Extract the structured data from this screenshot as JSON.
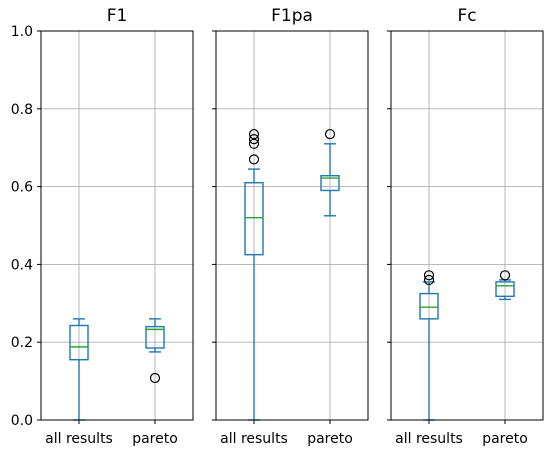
{
  "chart_data": {
    "type": "box",
    "ylim": [
      0.0,
      1.0
    ],
    "yticks": [
      "0.0",
      "0.2",
      "0.4",
      "0.6",
      "0.8",
      "1.0"
    ],
    "ytick_values": [
      0.0,
      0.2,
      0.4,
      0.6,
      0.8,
      1.0
    ],
    "grid": true,
    "colors": {
      "box": "#1f77b4",
      "median": "#2ca02c",
      "flier": "#000000",
      "grid": "#b0b0b0"
    },
    "panels": [
      {
        "title": "F1",
        "categories": [
          "all results",
          "pareto"
        ],
        "boxes": [
          {
            "whislo": 0.0,
            "q1": 0.155,
            "med": 0.188,
            "q3": 0.243,
            "whishi": 0.26,
            "fliers": []
          },
          {
            "whislo": 0.175,
            "q1": 0.185,
            "med": 0.233,
            "q3": 0.24,
            "whishi": 0.26,
            "fliers": [
              0.108
            ]
          }
        ]
      },
      {
        "title": "F1pa",
        "categories": [
          "all results",
          "pareto"
        ],
        "boxes": [
          {
            "whislo": 0.0,
            "q1": 0.425,
            "med": 0.52,
            "q3": 0.61,
            "whishi": 0.645,
            "fliers": [
              0.67,
              0.71,
              0.722,
              0.735
            ]
          },
          {
            "whislo": 0.525,
            "q1": 0.59,
            "med": 0.622,
            "q3": 0.628,
            "whishi": 0.71,
            "fliers": [
              0.735
            ]
          }
        ]
      },
      {
        "title": "Fc",
        "categories": [
          "all results",
          "pareto"
        ],
        "boxes": [
          {
            "whislo": 0.0,
            "q1": 0.26,
            "med": 0.29,
            "q3": 0.325,
            "whishi": 0.355,
            "fliers": [
              0.36,
              0.372
            ]
          },
          {
            "whislo": 0.31,
            "q1": 0.318,
            "med": 0.345,
            "q3": 0.355,
            "whishi": 0.36,
            "fliers": [
              0.372
            ]
          }
        ]
      }
    ]
  }
}
